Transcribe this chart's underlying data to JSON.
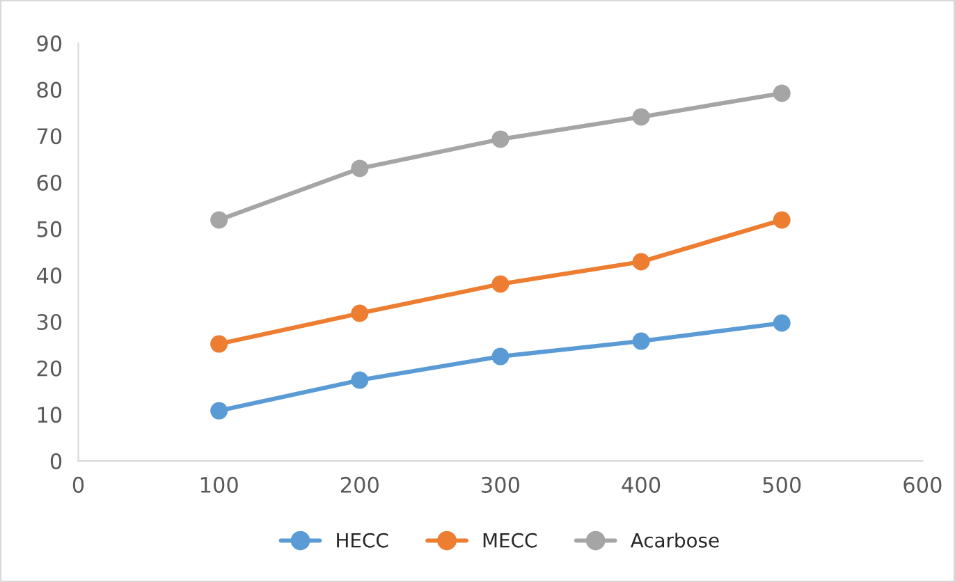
{
  "chart_data": {
    "type": "line",
    "x": [
      100,
      200,
      300,
      400,
      500
    ],
    "series": [
      {
        "name": "HECC",
        "color": "#5b9bd5",
        "values": [
          10.8,
          17.4,
          22.5,
          25.8,
          29.7
        ]
      },
      {
        "name": "MECC",
        "color": "#ed7d31",
        "values": [
          25.2,
          31.8,
          38.1,
          42.9,
          51.9
        ]
      },
      {
        "name": "Acarbose",
        "color": "#a5a5a5",
        "values": [
          51.9,
          63,
          69.3,
          74.1,
          79.2
        ]
      }
    ],
    "xlim": [
      0,
      600
    ],
    "xticks": [
      0,
      100,
      200,
      300,
      400,
      500,
      600
    ],
    "ylim": [
      0,
      90
    ],
    "yticks": [
      0,
      10,
      20,
      30,
      40,
      50,
      60,
      70,
      80,
      90
    ],
    "grid": false,
    "legend": "bottom",
    "marker": "circle",
    "line_style": "solid"
  }
}
